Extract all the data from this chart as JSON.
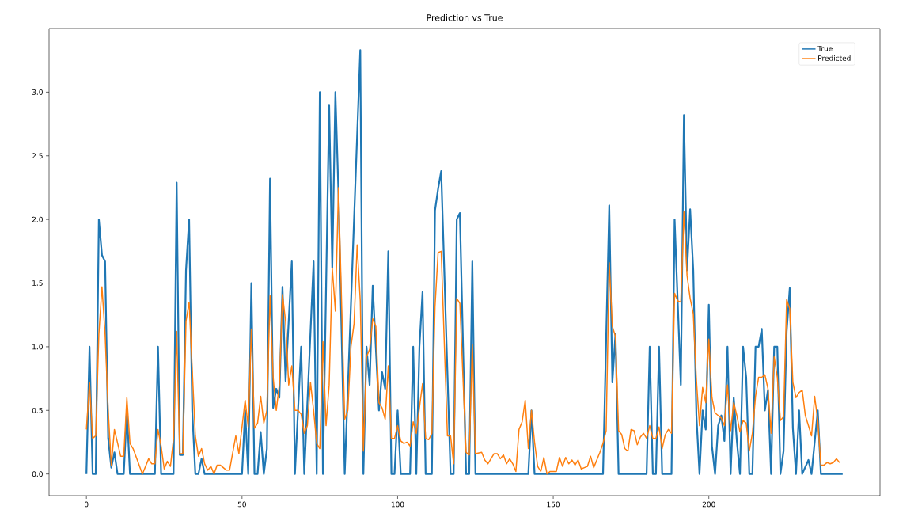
{
  "chart_data": {
    "type": "line",
    "title": "Prediction vs True",
    "xlim": [
      -12,
      255
    ],
    "ylim": [
      -0.17,
      3.5
    ],
    "xticks": [
      0,
      50,
      100,
      150,
      200
    ],
    "yticks": [
      {
        "value": 0,
        "label": "0.0"
      },
      {
        "value": 0.5,
        "label": "0.5"
      },
      {
        "value": 1,
        "label": "1.0"
      },
      {
        "value": 1.5,
        "label": "1.5"
      },
      {
        "value": 2,
        "label": "2.0"
      },
      {
        "value": 2.5,
        "label": "2.5"
      },
      {
        "value": 3,
        "label": "3.0"
      }
    ],
    "legend": "top right",
    "marker": "none",
    "line_style": "solid",
    "series": [
      {
        "name": "True",
        "color": "#1f77b4",
        "x": [
          0,
          1,
          2,
          3,
          4,
          5,
          6,
          7,
          8,
          9,
          10,
          12,
          13,
          14,
          22,
          23,
          24,
          28,
          29,
          30,
          31,
          32,
          33,
          34,
          35,
          36,
          37,
          38,
          50,
          51,
          52,
          53,
          54,
          55,
          56,
          57,
          58,
          59,
          60,
          61,
          62,
          63,
          64,
          66,
          67,
          69,
          70,
          73,
          74,
          75,
          76,
          78,
          79,
          80,
          81,
          83,
          88,
          89,
          90,
          91,
          92,
          94,
          95,
          96,
          97,
          98,
          99,
          100,
          101,
          104,
          105,
          106,
          107,
          108,
          109,
          111,
          112,
          113,
          114,
          117,
          118,
          119,
          120,
          122,
          123,
          124,
          125,
          142,
          143,
          144,
          166,
          168,
          169,
          170,
          171,
          180,
          181,
          182,
          183,
          184,
          185,
          188,
          189,
          191,
          192,
          193,
          194,
          195,
          196,
          197,
          198,
          199,
          200,
          201,
          202,
          203,
          204,
          205,
          206,
          207,
          208,
          209,
          210,
          211,
          212,
          213,
          214,
          215,
          216,
          217,
          218,
          219,
          220,
          221,
          222,
          223,
          224,
          225,
          226,
          227,
          228,
          229,
          230,
          232,
          233,
          235,
          236,
          243
        ],
        "values": [
          0,
          1.0,
          0,
          0,
          2.0,
          1.72,
          1.67,
          0.28,
          0.05,
          0.17,
          0,
          0,
          0.5,
          0,
          0,
          1.0,
          0,
          0,
          2.29,
          0.15,
          0.15,
          1.6,
          2.0,
          0.5,
          0,
          0,
          0.12,
          0,
          0,
          0.5,
          0,
          1.5,
          0,
          0,
          0.33,
          0,
          0.2,
          2.32,
          0.52,
          0.67,
          0.6,
          1.47,
          0.73,
          1.67,
          0,
          1.0,
          0,
          1.67,
          0,
          3.0,
          0,
          2.9,
          1.62,
          3.0,
          2.2,
          0,
          3.33,
          0,
          1.0,
          0.7,
          1.48,
          0.5,
          0.8,
          0.67,
          1.75,
          0,
          0,
          0.5,
          0,
          0,
          1.0,
          0,
          1.0,
          1.43,
          0,
          0,
          2.07,
          2.24,
          2.38,
          0,
          0,
          2.0,
          2.05,
          0,
          0,
          1.67,
          0,
          0,
          0.5,
          0,
          0,
          2.11,
          0.72,
          1.1,
          0,
          0,
          1.0,
          0,
          0,
          1.0,
          0,
          0,
          2.0,
          0.7,
          2.82,
          1.6,
          2.08,
          1.6,
          0.46,
          0,
          0.5,
          0.35,
          1.33,
          0.22,
          0,
          0.38,
          0.46,
          0.26,
          1.0,
          0,
          0.6,
          0.26,
          0,
          1.0,
          0.76,
          0,
          0,
          1.0,
          1.0,
          1.14,
          0.5,
          0.66,
          0,
          1.0,
          1.0,
          0,
          0.18,
          1.12,
          1.46,
          0.36,
          0,
          0.5,
          0,
          0.11,
          0,
          0.5,
          0,
          0
        ]
      },
      {
        "name": "Predicted",
        "color": "#ff7f0e",
        "x": [
          0,
          1,
          2,
          3,
          4,
          5,
          6,
          7,
          8,
          9,
          11,
          12,
          13,
          14,
          15,
          18,
          20,
          21,
          22,
          23,
          24,
          25,
          26,
          27,
          28,
          29,
          30,
          31,
          32,
          33,
          35,
          36,
          37,
          38,
          39,
          40,
          41,
          42,
          43,
          45,
          46,
          48,
          49,
          51,
          52,
          53,
          54,
          55,
          56,
          57,
          58,
          59,
          60,
          61,
          62,
          63,
          64,
          65,
          66,
          67,
          68,
          69,
          70,
          71,
          72,
          73,
          74,
          75,
          76,
          77,
          78,
          79,
          80,
          81,
          83,
          84,
          85,
          86,
          87,
          88,
          89,
          90,
          91,
          92,
          93,
          94,
          95,
          96,
          97,
          98,
          99,
          100,
          101,
          102,
          103,
          104,
          105,
          106,
          107,
          108,
          109,
          110,
          111,
          112,
          113,
          114,
          116,
          117,
          118,
          119,
          120,
          122,
          123,
          124,
          125,
          127,
          128,
          129,
          130,
          131,
          132,
          133,
          134,
          135,
          136,
          137,
          138,
          139,
          140,
          141,
          142,
          143,
          144,
          145,
          146,
          147,
          148,
          149,
          150,
          151,
          152,
          153,
          154,
          155,
          156,
          157,
          158,
          159,
          160,
          161,
          162,
          163,
          164,
          165,
          166,
          167,
          168,
          169,
          170,
          171,
          172,
          173,
          174,
          175,
          176,
          177,
          178,
          179,
          180,
          181,
          182,
          183,
          184,
          185,
          186,
          187,
          188,
          189,
          190,
          191,
          192,
          193,
          194,
          195,
          196,
          197,
          198,
          199,
          200,
          201,
          202,
          203,
          204,
          205,
          206,
          207,
          208,
          209,
          210,
          211,
          212,
          213,
          214,
          215,
          216,
          217,
          218,
          219,
          220,
          221,
          222,
          223,
          224,
          225,
          226,
          227,
          228,
          229,
          230,
          231,
          232,
          233,
          234,
          235,
          236,
          237,
          238,
          239,
          240,
          241,
          242
        ],
        "values": [
          0.35,
          0.72,
          0.28,
          0.3,
          1.1,
          1.47,
          1.1,
          0.5,
          0.07,
          0.35,
          0.14,
          0.14,
          0.6,
          0.24,
          0.2,
          0.0,
          0.12,
          0.08,
          0.08,
          0.35,
          0.22,
          0.04,
          0.1,
          0.06,
          0.28,
          1.12,
          0.16,
          0.16,
          1.2,
          1.35,
          0.3,
          0.14,
          0.2,
          0.08,
          0.03,
          0.06,
          0.0,
          0.07,
          0.07,
          0.03,
          0.03,
          0.3,
          0.16,
          0.58,
          0.37,
          1.14,
          0.36,
          0.4,
          0.61,
          0.4,
          0.5,
          1.4,
          0.76,
          0.5,
          0.7,
          1.41,
          1.2,
          0.7,
          0.85,
          0.5,
          0.5,
          0.47,
          0.32,
          0.38,
          0.72,
          0.5,
          0.24,
          0.2,
          1.04,
          0.38,
          0.7,
          1.62,
          1.28,
          2.25,
          0.43,
          0.5,
          1.0,
          1.18,
          1.8,
          1.36,
          0.18,
          0.92,
          0.98,
          1.22,
          1.16,
          0.56,
          0.52,
          0.43,
          0.85,
          0.28,
          0.28,
          0.38,
          0.26,
          0.24,
          0.25,
          0.22,
          0.41,
          0.32,
          0.52,
          0.71,
          0.28,
          0.27,
          0.32,
          1.31,
          1.74,
          1.75,
          0.3,
          0.3,
          0.08,
          1.38,
          1.34,
          0.17,
          0.15,
          1.02,
          0.16,
          0.17,
          0.11,
          0.08,
          0.12,
          0.16,
          0.16,
          0.12,
          0.15,
          0.08,
          0.12,
          0.08,
          0.02,
          0.35,
          0.41,
          0.58,
          0.2,
          0.5,
          0.25,
          0.06,
          0.02,
          0.13,
          0.0,
          0.02,
          0.02,
          0.02,
          0.13,
          0.06,
          0.13,
          0.08,
          0.11,
          0.07,
          0.11,
          0.04,
          0.05,
          0.06,
          0.14,
          0.05,
          0.11,
          0.17,
          0.24,
          0.34,
          1.66,
          1.16,
          1.08,
          0.34,
          0.31,
          0.2,
          0.18,
          0.35,
          0.34,
          0.23,
          0.29,
          0.32,
          0.28,
          0.38,
          0.28,
          0.28,
          0.37,
          0.2,
          0.31,
          0.35,
          0.32,
          1.42,
          1.36,
          1.35,
          2.06,
          1.56,
          1.38,
          1.26,
          0.74,
          0.38,
          0.68,
          0.56,
          1.06,
          0.6,
          0.48,
          0.46,
          0.44,
          0.38,
          0.7,
          0.34,
          0.56,
          0.46,
          0.33,
          0.42,
          0.4,
          0.18,
          0.32,
          0.61,
          0.76,
          0.76,
          0.78,
          0.67,
          0.32,
          0.92,
          0.76,
          0.42,
          0.45,
          1.37,
          1.3,
          0.72,
          0.6,
          0.64,
          0.66,
          0.46,
          0.38,
          0.3,
          0.61,
          0.42,
          0.07,
          0.07,
          0.09,
          0.08,
          0.09,
          0.12,
          0.09
        ]
      }
    ]
  }
}
